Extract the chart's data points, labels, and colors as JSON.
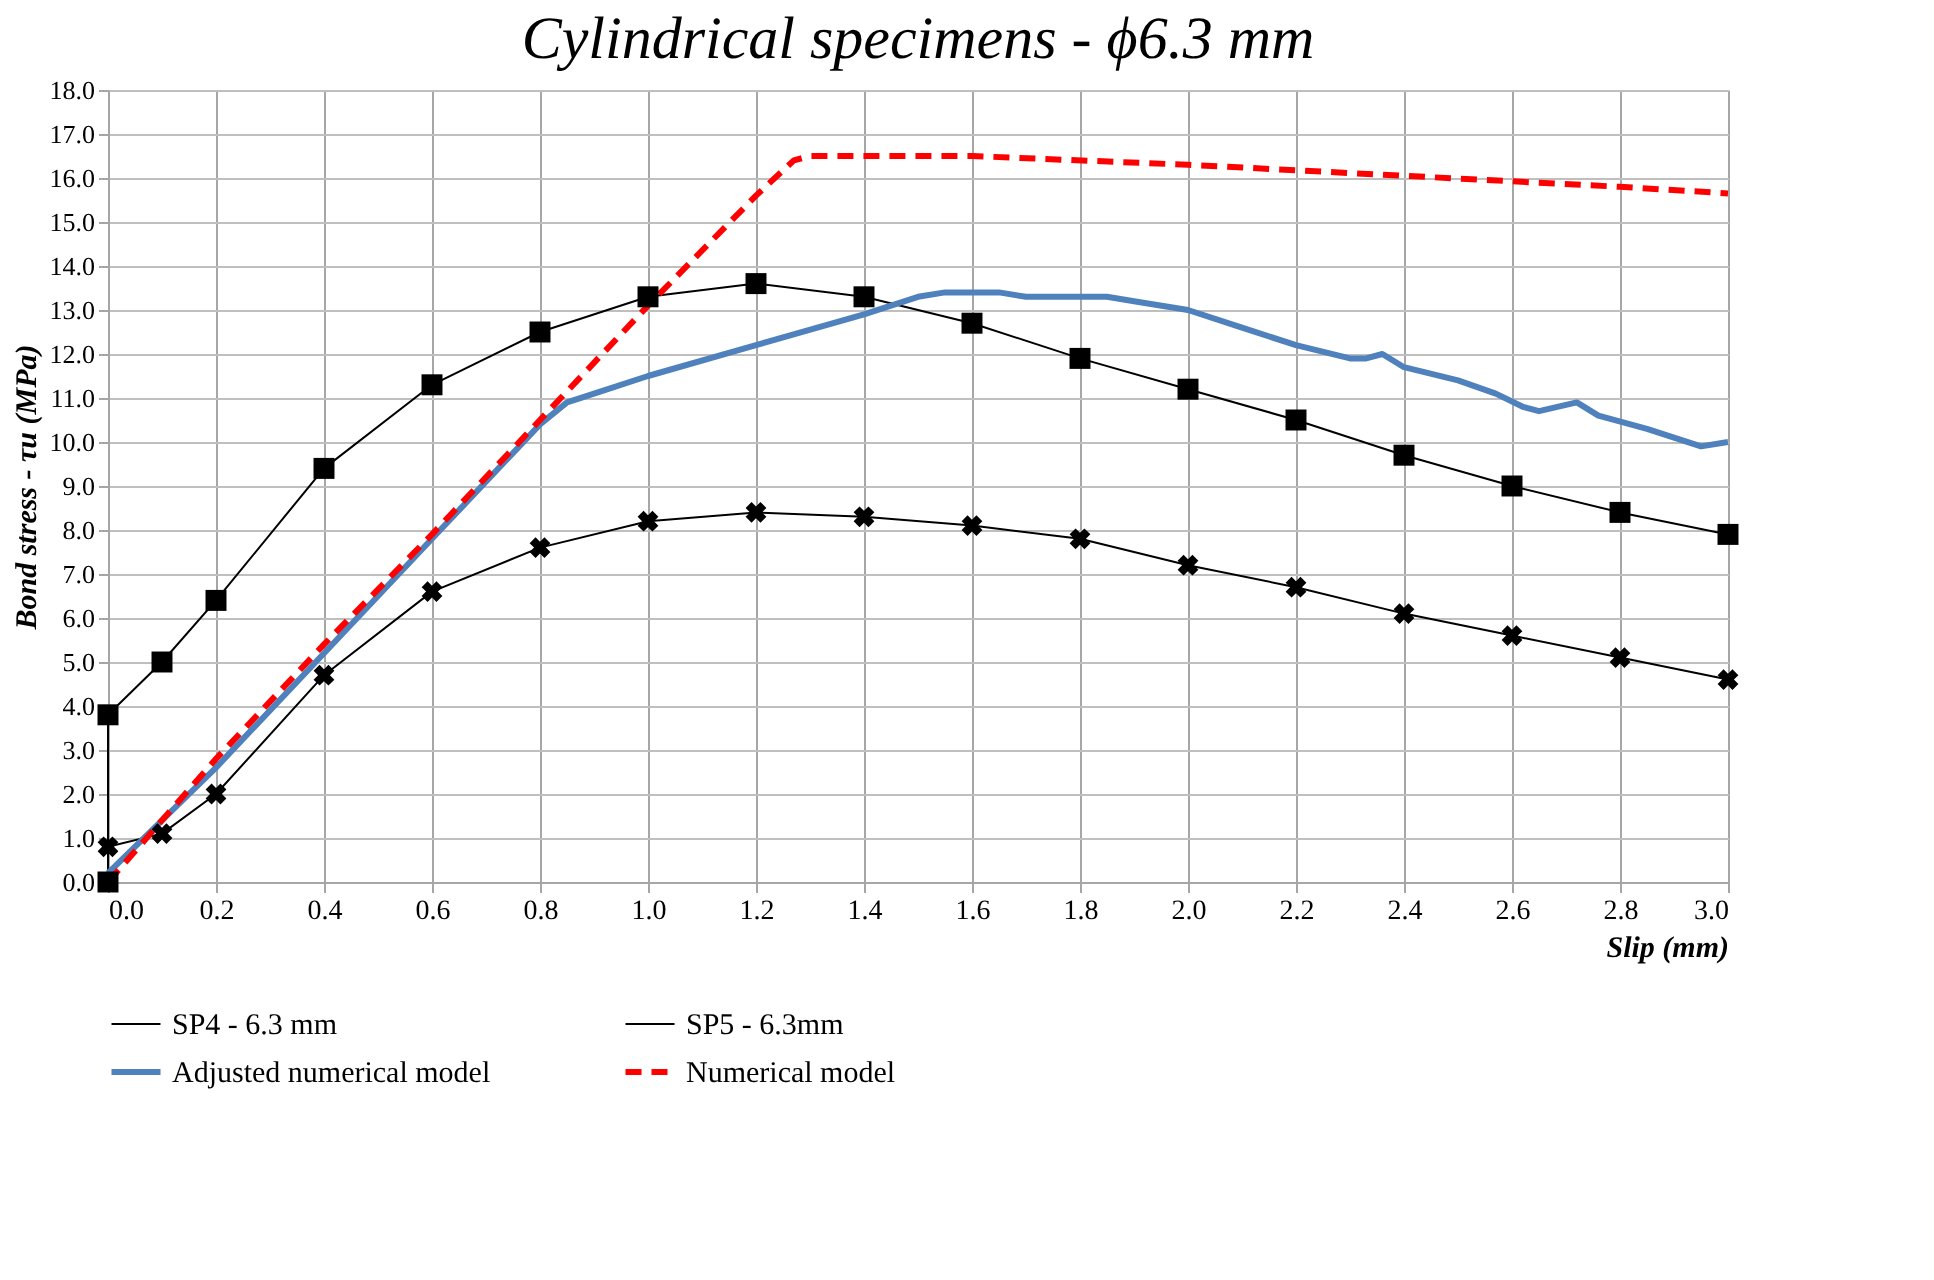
{
  "chart_data": {
    "type": "line",
    "title": "Cylindrical specimens - ϕ6.3 mm",
    "xlabel": "Slip (mm)",
    "ylabel": "Bond stress - τu (MPa)",
    "xlim": [
      0,
      3.0
    ],
    "ylim": [
      0,
      18.0
    ],
    "grid": true,
    "legend": "bottom",
    "xticks": [
      {
        "value": 0,
        "label": "0.0"
      },
      {
        "value": 0.2,
        "label": "0.2"
      },
      {
        "value": 0.4,
        "label": "0.4"
      },
      {
        "value": 0.6,
        "label": "0.6"
      },
      {
        "value": 0.8,
        "label": "0.8"
      },
      {
        "value": 1,
        "label": "1.0"
      },
      {
        "value": 1.2,
        "label": "1.2"
      },
      {
        "value": 1.4,
        "label": "1.4"
      },
      {
        "value": 1.6,
        "label": "1.6"
      },
      {
        "value": 1.8,
        "label": "1.8"
      },
      {
        "value": 2,
        "label": "2.0"
      },
      {
        "value": 2.2,
        "label": "2.2"
      },
      {
        "value": 2.4,
        "label": "2.4"
      },
      {
        "value": 2.6,
        "label": "2.6"
      },
      {
        "value": 2.8,
        "label": "2.8"
      },
      {
        "value": 3,
        "label": "3.0"
      }
    ],
    "yticks": [
      {
        "value": 0,
        "label": "0.0"
      },
      {
        "value": 1,
        "label": "1.0"
      },
      {
        "value": 2,
        "label": "2.0"
      },
      {
        "value": 3,
        "label": "3.0"
      },
      {
        "value": 4,
        "label": "4.0"
      },
      {
        "value": 5,
        "label": "5.0"
      },
      {
        "value": 6,
        "label": "6.0"
      },
      {
        "value": 7,
        "label": "7.0"
      },
      {
        "value": 8,
        "label": "8.0"
      },
      {
        "value": 9,
        "label": "9.0"
      },
      {
        "value": 10,
        "label": "10.0"
      },
      {
        "value": 11,
        "label": "11.0"
      },
      {
        "value": 12,
        "label": "12.0"
      },
      {
        "value": 13,
        "label": "13.0"
      },
      {
        "value": 14,
        "label": "14.0"
      },
      {
        "value": 15,
        "label": "15.0"
      },
      {
        "value": 16,
        "label": "16.0"
      },
      {
        "value": 17,
        "label": "17.0"
      },
      {
        "value": 18,
        "label": "18.0"
      }
    ],
    "series": [
      {
        "name": "SP4 - 6.3 mm",
        "color": "#000000",
        "marker": "cross",
        "line_style": "solid",
        "x": [
          0,
          0.1,
          0.2,
          0.4,
          0.6,
          0.8,
          1.0,
          1.2,
          1.4,
          1.6,
          1.8,
          2.0,
          2.2,
          2.4,
          2.6,
          2.8,
          3.0
        ],
        "values": [
          0.8,
          1.1,
          2.0,
          4.7,
          6.6,
          7.6,
          8.2,
          8.4,
          8.3,
          8.1,
          7.8,
          7.2,
          6.7,
          6.1,
          5.6,
          5.1,
          4.6
        ]
      },
      {
        "name": "SP5 - 6.3mm",
        "color": "#000000",
        "marker": "square",
        "line_style": "solid",
        "x": [
          0,
          0,
          0.1,
          0.2,
          0.4,
          0.6,
          0.8,
          1.0,
          1.2,
          1.4,
          1.6,
          1.8,
          2.0,
          2.2,
          2.4,
          2.6,
          2.8,
          3.0
        ],
        "values": [
          0,
          3.8,
          5.0,
          6.4,
          9.4,
          11.3,
          12.5,
          13.3,
          13.6,
          13.3,
          12.7,
          11.9,
          11.2,
          10.5,
          9.7,
          9.0,
          8.4,
          7.9
        ]
      },
      {
        "name": "Adjusted numerical model",
        "color": "#4f81bd",
        "marker": "none",
        "line_style": "solid",
        "x": [
          0,
          0.2,
          0.4,
          0.6,
          0.8,
          0.85,
          0.9,
          1.0,
          1.2,
          1.4,
          1.5,
          1.55,
          1.65,
          1.7,
          1.85,
          1.9,
          2.0,
          2.1,
          2.2,
          2.3,
          2.33,
          2.36,
          2.4,
          2.5,
          2.57,
          2.62,
          2.65,
          2.72,
          2.76,
          2.85,
          2.95,
          3.0
        ],
        "values": [
          0.2,
          2.6,
          5.2,
          7.8,
          10.4,
          10.9,
          11.1,
          11.5,
          12.2,
          12.9,
          13.3,
          13.4,
          13.4,
          13.3,
          13.3,
          13.2,
          13.0,
          12.6,
          12.2,
          11.9,
          11.9,
          12.0,
          11.7,
          11.4,
          11.1,
          10.8,
          10.7,
          10.9,
          10.6,
          10.3,
          9.9,
          10.0
        ]
      },
      {
        "name": "Numerical model",
        "color": "#ff0000",
        "marker": "none",
        "line_style": "dashed",
        "x": [
          0,
          0.2,
          0.4,
          0.6,
          0.8,
          1.0,
          1.2,
          1.27,
          1.3,
          1.6,
          2.0,
          2.4,
          2.8,
          3.0
        ],
        "values": [
          0,
          2.8,
          5.4,
          7.9,
          10.5,
          13.1,
          15.6,
          16.4,
          16.5,
          16.5,
          16.3,
          16.05,
          15.8,
          15.65
        ]
      }
    ]
  }
}
